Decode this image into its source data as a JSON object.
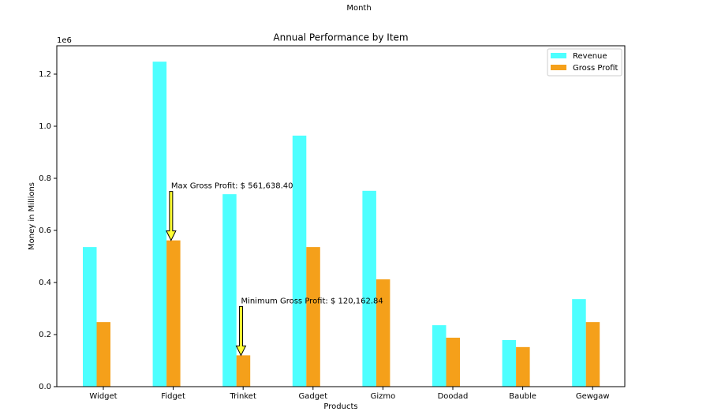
{
  "chart_data": {
    "type": "bar",
    "top_label": "Month",
    "title": "Annual Performance by Item",
    "xlabel": "Products",
    "ylabel": "Money in Millions",
    "offset_text": "1e6",
    "categories": [
      "Widget",
      "Fidget",
      "Trinket",
      "Gadget",
      "Gizmo",
      "Doodad",
      "Bauble",
      "Gewgaw"
    ],
    "series": [
      {
        "name": "Revenue",
        "color": "#4dffff",
        "values": [
          536000,
          1248000,
          739000,
          964000,
          752000,
          236000,
          179000,
          336000
        ]
      },
      {
        "name": "Gross Profit",
        "color": "#f5a01a",
        "values": [
          248000,
          561638.4,
          120162.84,
          536000,
          412000,
          188000,
          152000,
          248000
        ]
      }
    ],
    "annotations": [
      {
        "text": "Max Gross Profit: $ 561,638.40",
        "series": 1,
        "index": 1
      },
      {
        "text": "Minimum Gross Profit: $ 120,162.84",
        "series": 1,
        "index": 2
      }
    ],
    "ylim": [
      0,
      1309000
    ],
    "yticks": [
      {
        "value": 0,
        "label": "0.0"
      },
      {
        "value": 200000,
        "label": "0.2"
      },
      {
        "value": 400000,
        "label": "0.4"
      },
      {
        "value": 600000,
        "label": "0.6"
      },
      {
        "value": 800000,
        "label": "0.8"
      },
      {
        "value": 1000000,
        "label": "1.0"
      },
      {
        "value": 1200000,
        "label": "1.2"
      }
    ],
    "legend": "upper right",
    "grid": false
  }
}
